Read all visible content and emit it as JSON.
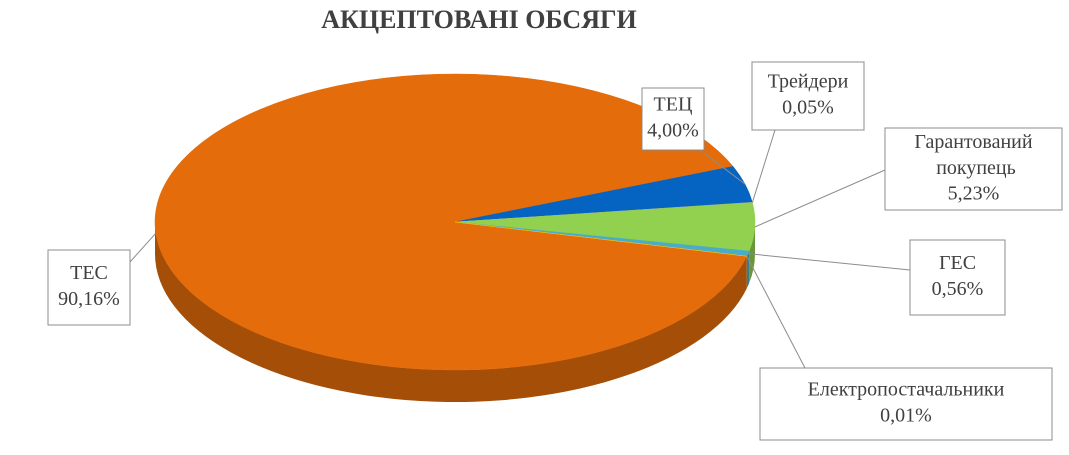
{
  "chart_data": {
    "type": "pie",
    "title": "АКЦЕПТОВАНІ ОБСЯГИ",
    "categories": [
      "ТЕС",
      "ТЕЦ",
      "Трейдери",
      "Гарантований покупець",
      "ГЕС",
      "Електропостачальники"
    ],
    "values": [
      90.16,
      4.0,
      0.05,
      5.23,
      0.56,
      0.01
    ],
    "value_labels": [
      "90,16%",
      "4,00%",
      "0,05%",
      "5,23%",
      "0,56%",
      "0,01%"
    ],
    "colors": [
      "#e46c0a",
      "#0563c1",
      "#a5a5a5",
      "#92d050",
      "#4bacc6",
      "#ffc000"
    ]
  }
}
